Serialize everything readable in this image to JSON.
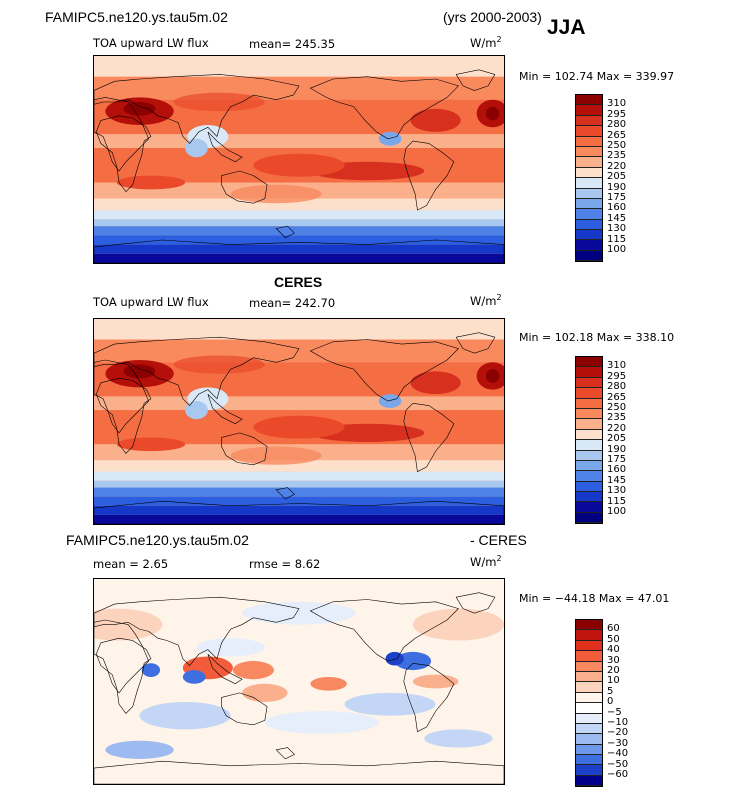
{
  "header": {
    "case_name": "FAMIPC5.ne120.ys.tau5m.02",
    "years": "(yrs 2000-2003)",
    "season": "JJA"
  },
  "panels": [
    {
      "id": "model",
      "title": "",
      "variable": "TOA upward LW flux",
      "mean_label": "mean= 245.35",
      "units": "W/m",
      "units_exp": "2",
      "minmax": "Min = 102.74 Max = 339.97",
      "colorbar_labels": [
        "310",
        "295",
        "280",
        "265",
        "250",
        "235",
        "220",
        "205",
        "190",
        "175",
        "160",
        "145",
        "130",
        "115",
        "100"
      ]
    },
    {
      "id": "obs",
      "title": "CERES",
      "variable": "TOA upward LW flux",
      "mean_label": "mean= 242.70",
      "units": "W/m",
      "units_exp": "2",
      "minmax": "Min = 102.18 Max = 338.10",
      "colorbar_labels": [
        "310",
        "295",
        "280",
        "265",
        "250",
        "235",
        "220",
        "205",
        "190",
        "175",
        "160",
        "145",
        "130",
        "115",
        "100"
      ]
    },
    {
      "id": "diff",
      "title_left": "FAMIPC5.ne120.ys.tau5m.02",
      "title_right": "- CERES",
      "mean_label": "mean =    2.65",
      "rmse_label": "rmse =    8.62",
      "units": "W/m",
      "units_exp": "2",
      "minmax": "Min = −44.18 Max =  47.01",
      "colorbar_labels": [
        "60",
        "50",
        "40",
        "30",
        "20",
        "10",
        "5",
        "0",
        "−5",
        "−10",
        "−20",
        "−30",
        "−40",
        "−50",
        "−60"
      ]
    }
  ],
  "colors": {
    "abs_scale": [
      "#8b0000",
      "#b50f0a",
      "#d7301f",
      "#ea4a2a",
      "#f46d43",
      "#f88a5e",
      "#fbb08c",
      "#fde0cc",
      "#d9e8f7",
      "#a9c8f0",
      "#7aa6ea",
      "#4f82e6",
      "#2b5fe0",
      "#1638c8",
      "#08089a",
      "#000080"
    ],
    "diff_scale": [
      "#8b0000",
      "#c0140e",
      "#e0301c",
      "#f25c3a",
      "#f7885f",
      "#fab08c",
      "#fcd3bd",
      "#fff4ea",
      "#ffffff",
      "#e6eefb",
      "#c4d6f5",
      "#9dbbf0",
      "#6d97e8",
      "#3e6fe0",
      "#1b41c8",
      "#00008b"
    ],
    "coast": "#000000"
  }
}
